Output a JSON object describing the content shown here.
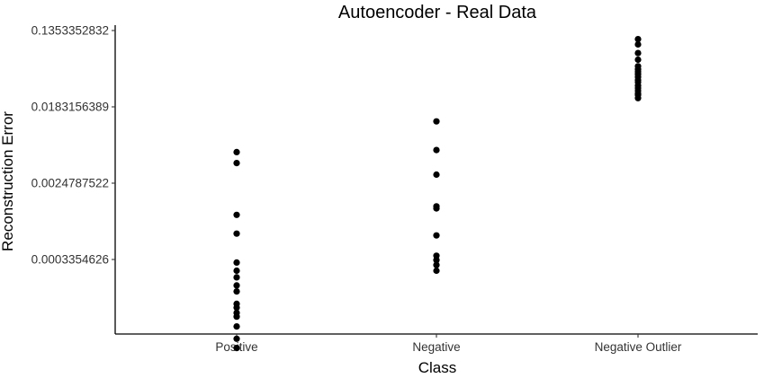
{
  "chart_data": {
    "type": "scatter",
    "title": "Autoencoder - Real Data",
    "xlabel": "Class",
    "ylabel": "Reconstruction Error",
    "y_scale": "log",
    "ylim": [
      1.9e-05,
      0.1353352832
    ],
    "y_ticks": [
      0.0003354626,
      0.0024787522,
      0.0183156389,
      0.1353352832
    ],
    "y_tick_labels": [
      "0.0003354626",
      "0.0024787522",
      "0.0183156389",
      "0.1353352832"
    ],
    "categories": [
      "Positive",
      "Negative",
      "Negative Outlier"
    ],
    "points": [
      {
        "category": "Positive",
        "values": [
          0.0056,
          0.0042,
          0.00108,
          0.00066,
          0.00031,
          0.00025,
          0.00021,
          0.00017,
          0.000145,
          0.000105,
          9.5e-05,
          8.3e-05,
          7.5e-05,
          5.8e-05,
          4.2e-05,
          3.3e-05
        ]
      },
      {
        "category": "Negative",
        "values": [
          0.0125,
          0.0059,
          0.0031,
          0.00135,
          0.00128,
          0.00063,
          0.00037,
          0.00033,
          0.00029,
          0.00025
        ]
      },
      {
        "category": "Negative Outlier",
        "values": [
          0.108,
          0.094,
          0.075,
          0.063,
          0.053,
          0.049,
          0.046,
          0.043,
          0.04,
          0.037,
          0.035,
          0.032,
          0.03,
          0.028,
          0.026,
          0.025,
          0.023
        ]
      }
    ],
    "grid": false,
    "legend": "none"
  }
}
